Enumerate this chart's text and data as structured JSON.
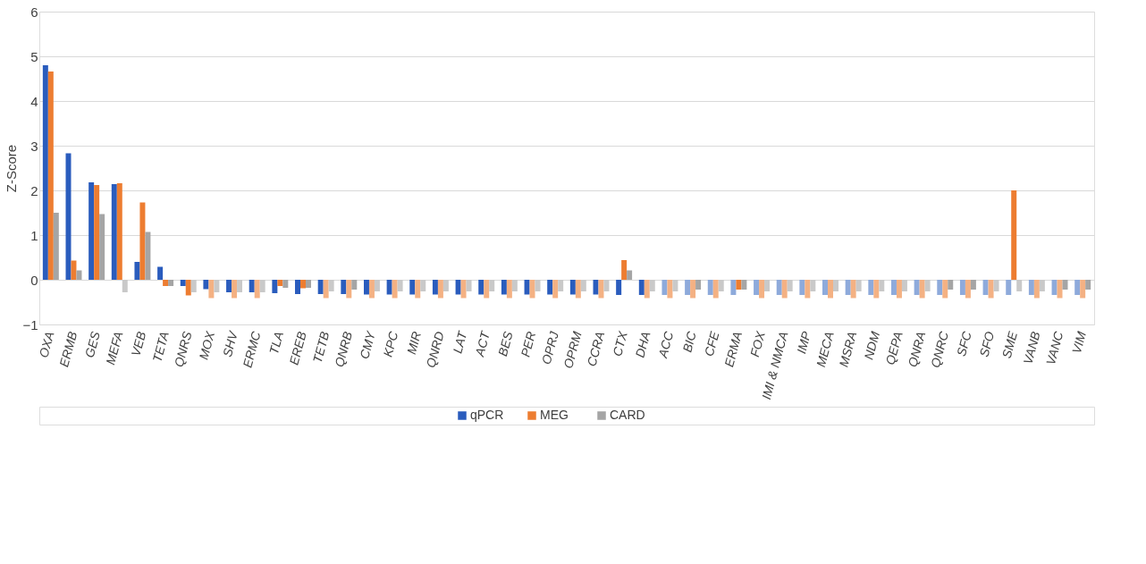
{
  "chart_data": {
    "type": "bar",
    "ylabel": "Z-Score",
    "categories": [
      "OXA",
      "ERMB",
      "GES",
      "MEFA",
      "VEB",
      "TETA",
      "QNRS",
      "MOX",
      "SHV",
      "ERMC",
      "TLA",
      "EREB",
      "TETB",
      "QNRB",
      "CMY",
      "KPC",
      "MIR",
      "QNRD",
      "LAT",
      "ACT",
      "BES",
      "PER",
      "OPRJ",
      "OPRM",
      "CCRA",
      "CTX",
      "DHA",
      "ACC",
      "BIC",
      "CFE",
      "ERMA",
      "FOX",
      "IMI & NMCA",
      "IMP",
      "MECA",
      "MSRA",
      "NDM",
      "QEPA",
      "QNRA",
      "QNRC",
      "SFC",
      "SFO",
      "SME",
      "VANB",
      "VANC",
      "VIM"
    ],
    "series": [
      {
        "name": "qPCR",
        "color": "#2a5cbd",
        "values": [
          4.8,
          2.83,
          2.18,
          2.14,
          0.4,
          0.29,
          -0.14,
          -0.21,
          -0.28,
          -0.28,
          -0.3,
          -0.32,
          -0.32,
          -0.32,
          -0.33,
          -0.33,
          -0.33,
          -0.33,
          -0.33,
          -0.33,
          -0.33,
          -0.33,
          -0.33,
          -0.33,
          -0.33,
          -0.34,
          -0.34,
          -0.34,
          -0.34,
          -0.34,
          -0.34,
          -0.34,
          -0.34,
          -0.34,
          -0.34,
          -0.34,
          -0.34,
          -0.34,
          -0.34,
          -0.34,
          -0.34,
          -0.34,
          -0.34,
          -0.34,
          -0.34,
          -0.34
        ],
        "colors": [
          "#2a5cbd",
          "#2a5cbd",
          "#2a5cbd",
          "#2a5cbd",
          "#2a5cbd",
          "#2a5cbd",
          "#2a5cbd",
          "#2a5cbd",
          "#2a5cbd",
          "#2a5cbd",
          "#2a5cbd",
          "#2a5cbd",
          "#2a5cbd",
          "#2a5cbd",
          "#2a5cbd",
          "#2a5cbd",
          "#2a5cbd",
          "#2a5cbd",
          "#2a5cbd",
          "#2a5cbd",
          "#2a5cbd",
          "#2a5cbd",
          "#2a5cbd",
          "#2a5cbd",
          "#2a5cbd",
          "#2a5cbd",
          "#2a5cbd",
          "#8eaadb",
          "#8eaadb",
          "#8eaadb",
          "#8eaadb",
          "#8eaadb",
          "#8eaadb",
          "#8eaadb",
          "#8eaadb",
          "#8eaadb",
          "#8eaadb",
          "#8eaadb",
          "#8eaadb",
          "#8eaadb",
          "#8eaadb",
          "#8eaadb",
          "#8eaadb",
          "#8eaadb",
          "#8eaadb",
          "#8eaadb"
        ]
      },
      {
        "name": "MEG",
        "color": "#ed7d31",
        "values": [
          4.66,
          0.43,
          2.12,
          2.16,
          1.73,
          -0.14,
          -0.35,
          -0.41,
          -0.41,
          -0.41,
          -0.14,
          -0.19,
          -0.41,
          -0.41,
          -0.41,
          -0.41,
          -0.41,
          -0.41,
          -0.41,
          -0.41,
          -0.41,
          -0.41,
          -0.41,
          -0.41,
          -0.41,
          0.44,
          -0.41,
          -0.41,
          -0.41,
          -0.41,
          -0.22,
          -0.41,
          -0.41,
          -0.41,
          -0.41,
          -0.41,
          -0.41,
          -0.41,
          -0.41,
          -0.41,
          -0.41,
          -0.41,
          2.0,
          -0.41,
          -0.41,
          -0.41
        ],
        "colors": [
          "#ed7d31",
          "#ed7d31",
          "#ed7d31",
          "#ed7d31",
          "#ed7d31",
          "#ed7d31",
          "#ed7d31",
          "#f4b183",
          "#f4b183",
          "#f4b183",
          "#ed7d31",
          "#ed7d31",
          "#f4b183",
          "#f4b183",
          "#f4b183",
          "#f4b183",
          "#f4b183",
          "#f4b183",
          "#f4b183",
          "#f4b183",
          "#f4b183",
          "#f4b183",
          "#f4b183",
          "#f4b183",
          "#f4b183",
          "#ed7d31",
          "#f4b183",
          "#f4b183",
          "#f4b183",
          "#f4b183",
          "#ed7d31",
          "#f4b183",
          "#f4b183",
          "#f4b183",
          "#f4b183",
          "#f4b183",
          "#f4b183",
          "#f4b183",
          "#f4b183",
          "#f4b183",
          "#f4b183",
          "#f4b183",
          "#ed7d31",
          "#f4b183",
          "#f4b183",
          "#f4b183"
        ]
      },
      {
        "name": "CARD",
        "color": "#a5a5a5",
        "values": [
          1.5,
          0.21,
          1.47,
          -0.28,
          1.07,
          -0.14,
          -0.28,
          -0.28,
          -0.28,
          -0.28,
          -0.18,
          -0.18,
          -0.26,
          -0.22,
          -0.26,
          -0.26,
          -0.26,
          -0.26,
          -0.26,
          -0.26,
          -0.26,
          -0.26,
          -0.26,
          -0.26,
          -0.26,
          0.21,
          -0.26,
          -0.26,
          -0.22,
          -0.26,
          -0.22,
          -0.26,
          -0.26,
          -0.26,
          -0.26,
          -0.26,
          -0.26,
          -0.26,
          -0.26,
          -0.22,
          -0.22,
          -0.26,
          -0.26,
          -0.26,
          -0.22,
          -0.22
        ],
        "colors": [
          "#a5a5a5",
          "#a5a5a5",
          "#a5a5a5",
          "#c9c9c9",
          "#a5a5a5",
          "#a5a5a5",
          "#c9c9c9",
          "#c9c9c9",
          "#c9c9c9",
          "#c9c9c9",
          "#a5a5a5",
          "#a5a5a5",
          "#c9c9c9",
          "#a5a5a5",
          "#c9c9c9",
          "#c9c9c9",
          "#c9c9c9",
          "#c9c9c9",
          "#c9c9c9",
          "#c9c9c9",
          "#c9c9c9",
          "#c9c9c9",
          "#c9c9c9",
          "#c9c9c9",
          "#c9c9c9",
          "#a5a5a5",
          "#c9c9c9",
          "#c9c9c9",
          "#a5a5a5",
          "#c9c9c9",
          "#a5a5a5",
          "#c9c9c9",
          "#c9c9c9",
          "#c9c9c9",
          "#c9c9c9",
          "#c9c9c9",
          "#c9c9c9",
          "#c9c9c9",
          "#c9c9c9",
          "#a5a5a5",
          "#a5a5a5",
          "#c9c9c9",
          "#c9c9c9",
          "#c9c9c9",
          "#a5a5a5",
          "#a5a5a5"
        ]
      }
    ],
    "ylim": [
      -1,
      6
    ],
    "yticks": [
      -1,
      0,
      1,
      2,
      3,
      4,
      5,
      6
    ],
    "grid": "y",
    "legend": "bottom"
  }
}
